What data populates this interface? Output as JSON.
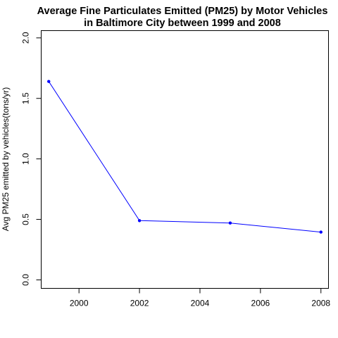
{
  "chart_data": {
    "type": "line",
    "title_lines": [
      "Average Fine Particulates Emitted (PM25) by Motor Vehicles",
      "in Baltimore City between 1999 and 2008"
    ],
    "xlabel": "",
    "ylabel": "Avg PM25 emitted by vehicles(tons/yr)",
    "x": [
      1999,
      2002,
      2005,
      2008
    ],
    "y": [
      1.64,
      0.49,
      0.47,
      0.395
    ],
    "xlim": [
      1998.75,
      2008.25
    ],
    "ylim": [
      -0.07,
      2.06
    ],
    "xticks": [
      2000,
      2002,
      2004,
      2006,
      2008
    ],
    "yticks": [
      0.0,
      0.5,
      1.0,
      1.5,
      2.0
    ],
    "ytick_labels": [
      "0.0",
      "0.5",
      "1.0",
      "1.5",
      "2.0"
    ],
    "line_color": "#0000ff",
    "point_color": "#0000ff",
    "grid": false,
    "legend": "none"
  }
}
